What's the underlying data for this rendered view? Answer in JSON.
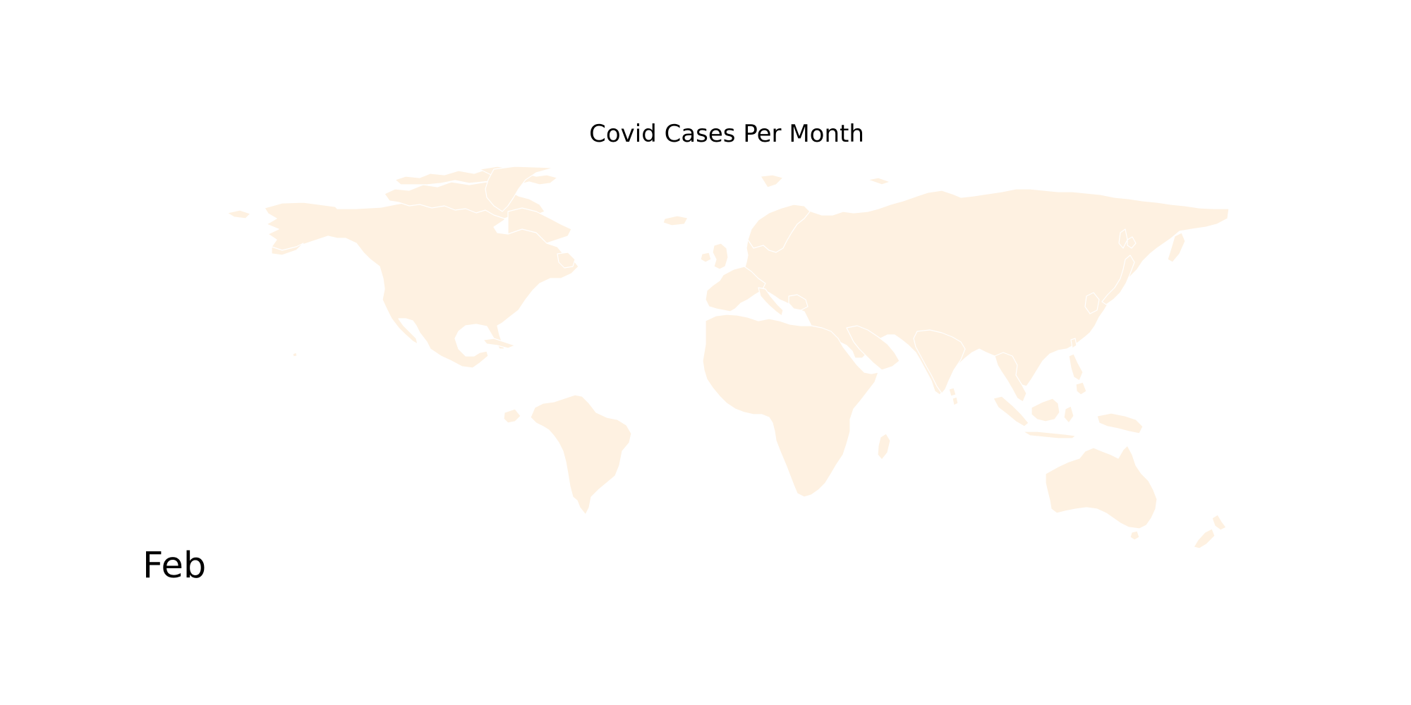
{
  "map": {
    "title": "Covid Cases Per Month",
    "month": "Feb",
    "land_color": "#fef1e1",
    "border_color": "#ffffff",
    "background": "#ffffff",
    "regions": [
      "north-america",
      "greenland",
      "south-america",
      "europe",
      "africa",
      "asia",
      "australia",
      "new-zealand",
      "iceland",
      "japan",
      "indonesia",
      "philippines",
      "madagascar",
      "arctic-islands"
    ]
  }
}
